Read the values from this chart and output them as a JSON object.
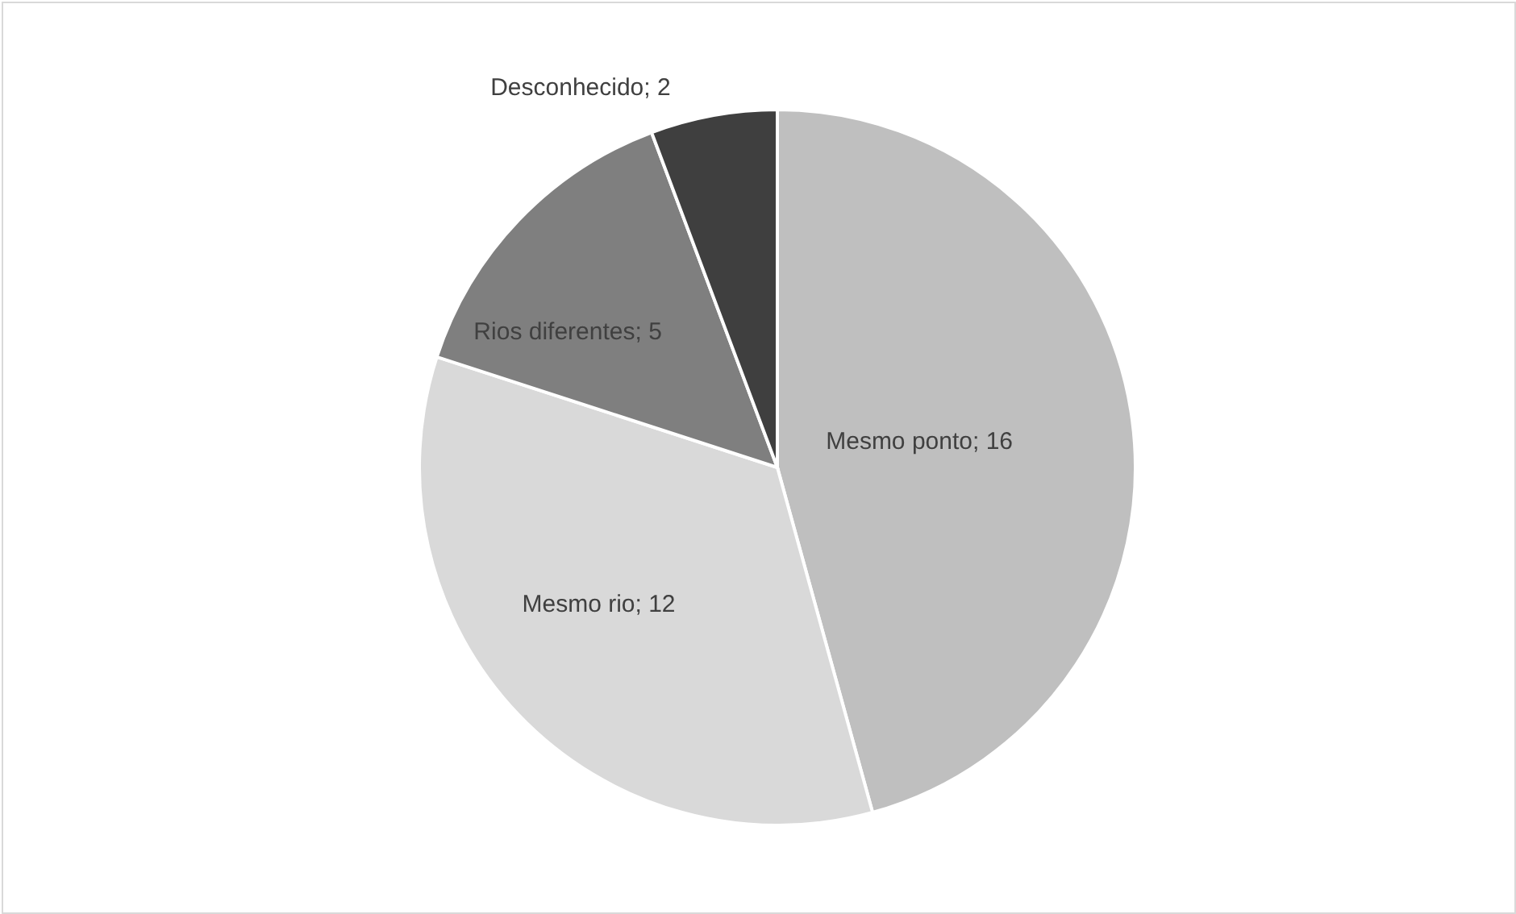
{
  "chart_data": {
    "type": "pie",
    "categories": [
      "Mesmo ponto",
      "Mesmo rio",
      "Rios diferentes",
      "Desconhecido"
    ],
    "values": [
      16,
      12,
      5,
      2
    ],
    "colors": [
      "#bfbfbf",
      "#d9d9d9",
      "#7f7f7f",
      "#3f3f3f"
    ],
    "value_labels": [
      "; 16",
      "; 12",
      "; 5",
      "; 2"
    ]
  }
}
